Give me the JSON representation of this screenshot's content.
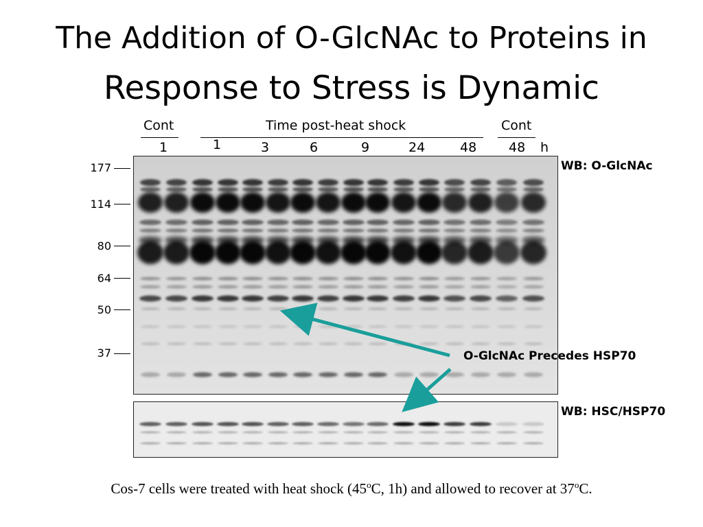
{
  "title": {
    "line1": "The Addition of O-GlcNAc to Proteins in",
    "line2": "Response to Stress is Dynamic"
  },
  "header": {
    "cont_left": "Cont",
    "time_label": "Time post-heat shock",
    "cont_right": "Cont",
    "lanes": [
      "1",
      "1",
      "3",
      "6",
      "9",
      "24",
      "48",
      "48"
    ],
    "unit": "h"
  },
  "markers": [
    "177",
    "114",
    "80",
    "64",
    "50",
    "37"
  ],
  "blot_top_label": "WB: O-GlcNAc",
  "blot_bottom_label": "WB: HSC/HSP70",
  "annotation": "O-GlcNAc Precedes HSP70",
  "caption": {
    "part1": "Cos-7 cells were treated with heat shock (45",
    "sup1": "o",
    "part2": "C, 1h) and allowed to recover at 37",
    "sup2": "o",
    "part3": "C."
  },
  "colors": {
    "arrow": "#1a9e9b",
    "blot_bg": "#d4d4d4"
  }
}
